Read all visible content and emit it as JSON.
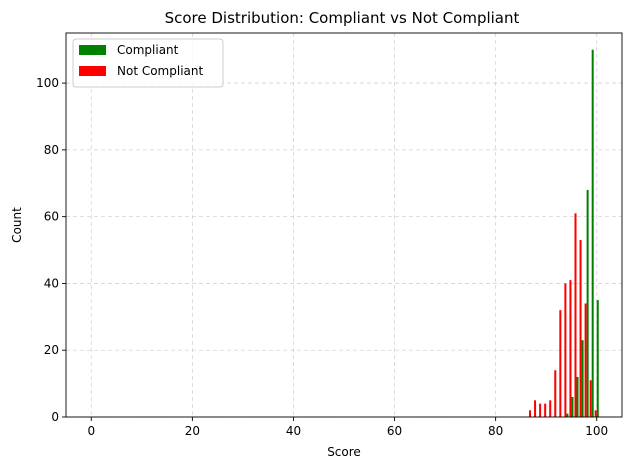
{
  "chart_data": {
    "type": "bar",
    "title": "Score Distribution: Compliant vs Not Compliant",
    "xlabel": "Score",
    "ylabel": "Count",
    "xlim": [
      -5,
      105
    ],
    "ylim": [
      0,
      115
    ],
    "xticks": [
      0,
      20,
      40,
      60,
      80,
      100
    ],
    "yticks": [
      0,
      20,
      40,
      60,
      80,
      100
    ],
    "grid": true,
    "legend_position": "upper-left",
    "bar_width": 0.4,
    "series": [
      {
        "name": "Compliant",
        "color": "#008000",
        "offset": 0.2,
        "points": [
          {
            "x": 94,
            "y": 1
          },
          {
            "x": 95,
            "y": 6
          },
          {
            "x": 96,
            "y": 12
          },
          {
            "x": 97,
            "y": 23
          },
          {
            "x": 98,
            "y": 68
          },
          {
            "x": 99,
            "y": 110
          },
          {
            "x": 100,
            "y": 35
          }
        ]
      },
      {
        "name": "Not Compliant",
        "color": "#ff0000",
        "offset": -0.2,
        "points": [
          {
            "x": 87,
            "y": 2
          },
          {
            "x": 88,
            "y": 5
          },
          {
            "x": 89,
            "y": 4
          },
          {
            "x": 90,
            "y": 4
          },
          {
            "x": 91,
            "y": 5
          },
          {
            "x": 92,
            "y": 14
          },
          {
            "x": 93,
            "y": 32
          },
          {
            "x": 94,
            "y": 40
          },
          {
            "x": 95,
            "y": 41
          },
          {
            "x": 96,
            "y": 61
          },
          {
            "x": 97,
            "y": 53
          },
          {
            "x": 98,
            "y": 34
          },
          {
            "x": 99,
            "y": 11
          },
          {
            "x": 100,
            "y": 2
          }
        ]
      }
    ]
  }
}
